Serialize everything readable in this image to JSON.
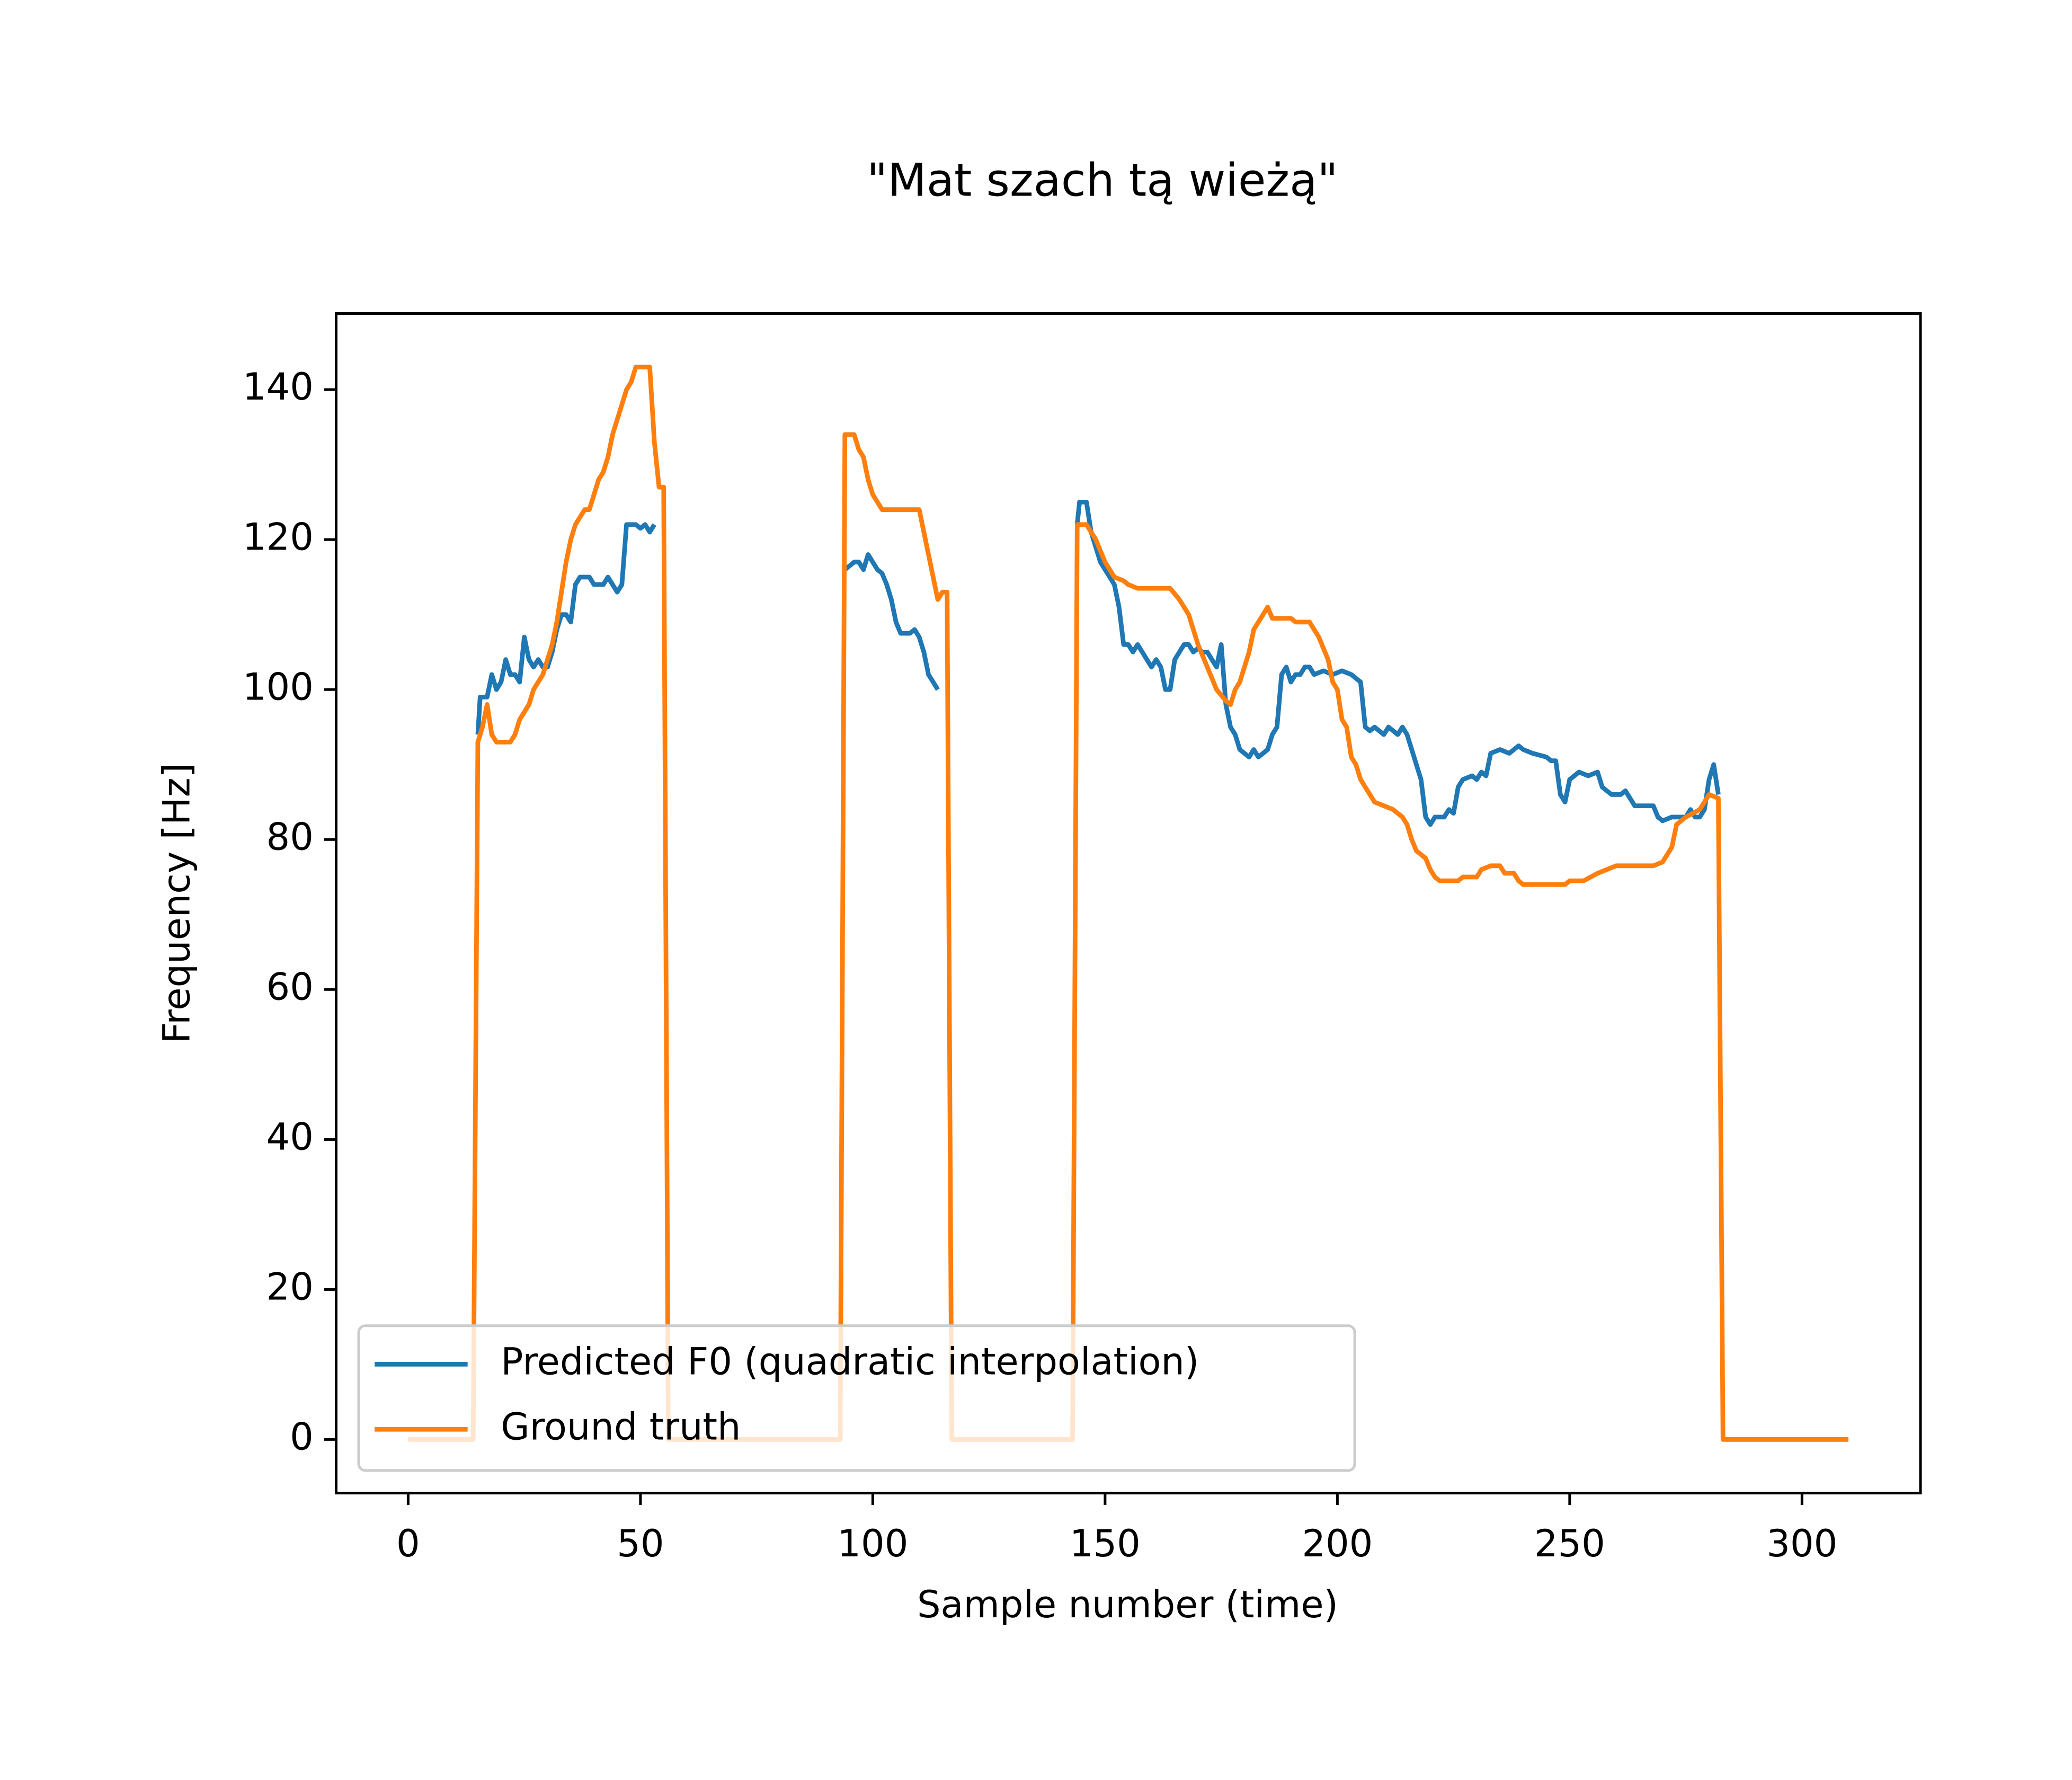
{
  "chart_data": {
    "type": "line",
    "title": "\"Mat szach tą wieżą\"",
    "x_label": "Sample number (time)",
    "y_label": "Frequency [Hz]",
    "xlim": [
      -15.5,
      325.5
    ],
    "ylim": [
      -7.15,
      150.15
    ],
    "xticks": [
      0,
      50,
      100,
      150,
      200,
      250,
      300
    ],
    "yticks": [
      0,
      20,
      40,
      60,
      80,
      100,
      120,
      140
    ],
    "grid": false,
    "legend": "lower left",
    "series": [
      {
        "name": "Predicted F0 (quadratic interpolation)",
        "color": "#1f77b4",
        "x": [
          15,
          15.5,
          17,
          18,
          19,
          20,
          21,
          22,
          23,
          24,
          25,
          26,
          27,
          28,
          29,
          30,
          31,
          32,
          33,
          34,
          35,
          36,
          37,
          39,
          40,
          42,
          43,
          44,
          45,
          46,
          47,
          49,
          50,
          51,
          52,
          53,
          55,
          94,
          96,
          97,
          98,
          99,
          100,
          101,
          102,
          103,
          104,
          105,
          106,
          108,
          109,
          110,
          111,
          112,
          113,
          114,
          115,
          144,
          144.5,
          146,
          147,
          148,
          149,
          150,
          151,
          152,
          153,
          154,
          155,
          156,
          157,
          158,
          159,
          160,
          161,
          162,
          163,
          164,
          165,
          166,
          167,
          168,
          169,
          170,
          171,
          172,
          173,
          174,
          175,
          176,
          177,
          178,
          179,
          180,
          181,
          182,
          183,
          184,
          185,
          186,
          187,
          188,
          189,
          190,
          191,
          192,
          193,
          194,
          195,
          197,
          199,
          201,
          203,
          205,
          206,
          207,
          208,
          209,
          210,
          211,
          212,
          213,
          214,
          215,
          216,
          217,
          218,
          219,
          220,
          221,
          223,
          224,
          225,
          226,
          227,
          229,
          230,
          231,
          232,
          233,
          235,
          237,
          239,
          240,
          242,
          245,
          246,
          247,
          248,
          249,
          250,
          252,
          254,
          256,
          257,
          259,
          261,
          262,
          264,
          266,
          268,
          269,
          270,
          272,
          274,
          275,
          276,
          277,
          278,
          279,
          280,
          281,
          282
        ],
        "values": [
          94,
          99,
          99,
          102,
          100,
          101,
          104,
          102,
          102,
          101,
          107,
          104,
          103,
          104,
          103,
          103,
          105,
          108,
          110,
          110,
          109,
          114,
          115,
          115,
          114,
          114,
          115,
          114,
          113,
          114,
          122,
          122,
          121.5,
          122,
          121,
          122,
          null,
          116,
          117,
          117,
          116,
          118,
          117,
          116,
          115.5,
          114,
          112,
          109,
          107.5,
          107.5,
          108,
          107,
          105,
          102,
          101,
          100,
          null,
          122,
          125,
          125,
          121,
          119,
          117,
          116,
          115,
          114,
          111,
          106,
          106,
          105,
          106,
          105,
          104,
          103,
          104,
          103,
          100,
          100,
          104,
          105,
          106,
          106,
          105,
          105.5,
          105,
          105,
          104,
          103,
          106,
          98,
          95,
          94,
          92,
          91.5,
          91,
          92,
          91,
          91.5,
          92,
          94,
          95,
          102,
          103,
          101,
          102,
          102,
          103,
          103,
          102,
          102.5,
          102,
          102.5,
          102,
          101,
          95,
          94.5,
          95,
          94.5,
          94,
          95,
          94.5,
          94,
          95,
          94,
          92,
          90,
          88,
          83,
          82,
          83,
          83,
          84,
          83.5,
          87,
          88,
          88.5,
          88,
          89,
          88.5,
          91.5,
          92,
          91.5,
          92.5,
          92,
          91.5,
          91,
          90.5,
          90.5,
          86,
          85,
          88,
          89,
          88.5,
          89,
          87,
          86,
          86,
          86.5,
          84.5,
          84.5,
          84.5,
          83,
          82.5,
          83,
          83,
          83,
          84,
          83,
          83,
          84,
          88,
          90,
          86
        ]
      },
      {
        "name": "Ground truth",
        "color": "#ff7f0e",
        "x": [
          0,
          14,
          15,
          16,
          17,
          18,
          19,
          22,
          23,
          24,
          25,
          26,
          27,
          28,
          29,
          30,
          31,
          32,
          33,
          34,
          35,
          36,
          37,
          38,
          39,
          40,
          41,
          42,
          43,
          44,
          45,
          46,
          47,
          48,
          49,
          52,
          53,
          54,
          55,
          56,
          93,
          94,
          96,
          97,
          98,
          99,
          100,
          101,
          102,
          110,
          111,
          112,
          113,
          114,
          115,
          116,
          117,
          143,
          144,
          146,
          148,
          150,
          152,
          154,
          155,
          157,
          164,
          166,
          168,
          170,
          172,
          174,
          176,
          177,
          178,
          179,
          180,
          181,
          182,
          184,
          185,
          186,
          190,
          191,
          194,
          196,
          198,
          199,
          200,
          201,
          202,
          203,
          204,
          205,
          206,
          207,
          208,
          210,
          212,
          214,
          215,
          216,
          217,
          218,
          219,
          220,
          221,
          222,
          226,
          227,
          230,
          231,
          233,
          235,
          236,
          238,
          239,
          240,
          249,
          250,
          253,
          256,
          258,
          260,
          268,
          270,
          272,
          273,
          275,
          278,
          280,
          282,
          283,
          310
        ],
        "values": [
          0,
          0,
          93,
          95,
          98,
          94,
          93,
          93,
          94,
          96,
          97,
          98,
          100,
          101,
          102,
          104,
          106,
          109,
          113,
          117,
          120,
          122,
          123,
          124,
          124,
          126,
          128,
          129,
          131,
          134,
          136,
          138,
          140,
          141,
          143,
          143,
          133,
          127,
          127,
          0,
          0,
          134,
          134,
          132,
          131,
          128,
          126,
          125,
          124,
          124,
          121,
          118,
          115,
          112,
          113,
          113,
          0,
          0,
          122,
          122,
          120,
          117,
          115,
          114.5,
          114,
          113.5,
          113.5,
          112,
          110,
          106,
          103,
          100,
          98.5,
          98,
          100,
          101,
          103,
          105,
          108,
          110,
          111,
          109.5,
          109.5,
          109,
          109,
          107,
          104,
          101,
          100,
          96,
          95,
          91,
          90,
          88,
          87,
          86,
          85,
          84.5,
          84,
          83,
          82,
          80,
          78.5,
          78,
          77.5,
          76,
          75,
          74.5,
          74.5,
          75,
          75,
          76,
          76.5,
          76.5,
          75.5,
          75.5,
          74.5,
          74,
          74,
          74.5,
          74.5,
          75.5,
          76,
          76.5,
          76.5,
          77,
          79,
          82,
          83,
          84,
          86,
          85.5,
          0,
          0
        ]
      }
    ]
  }
}
